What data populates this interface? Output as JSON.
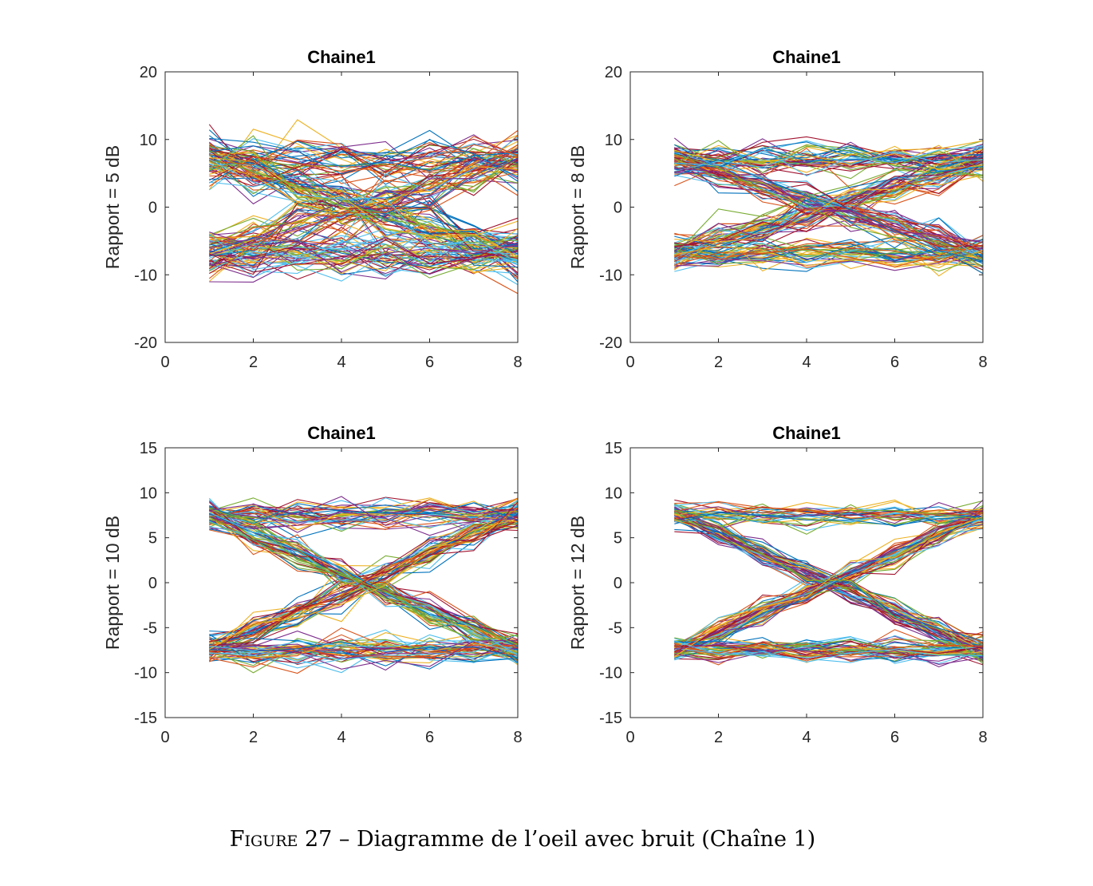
{
  "figure": {
    "caption_label": "Figure 27",
    "caption_text": " – Diagramme de l’oeil avec bruit (Chaîne 1)"
  },
  "chart_data": [
    {
      "type": "line",
      "title": "Chaine1",
      "ylabel": "Rapport = 5 dB",
      "xlabel": "",
      "xlim": [
        0,
        8
      ],
      "ylim": [
        -20,
        20
      ],
      "xticks": [
        0,
        2,
        4,
        6,
        8
      ],
      "yticks": [
        -20,
        -10,
        0,
        10,
        20
      ],
      "x": [
        1,
        2,
        3,
        4,
        5,
        6,
        7,
        8
      ],
      "symbol_level": 7,
      "noise_std": 3.2,
      "trace_count": 160,
      "series_colors": [
        "#0072BD",
        "#D95319",
        "#EDB120",
        "#7E2F8E",
        "#77AC30",
        "#4DBEEE",
        "#A2142F"
      ]
    },
    {
      "type": "line",
      "title": "Chaine1",
      "ylabel": "Rapport = 8 dB",
      "xlabel": "",
      "xlim": [
        0,
        8
      ],
      "ylim": [
        -20,
        20
      ],
      "xticks": [
        0,
        2,
        4,
        6,
        8
      ],
      "yticks": [
        -20,
        -10,
        0,
        10,
        20
      ],
      "x": [
        1,
        2,
        3,
        4,
        5,
        6,
        7,
        8
      ],
      "symbol_level": 7,
      "noise_std": 2.2,
      "trace_count": 160,
      "series_colors": [
        "#0072BD",
        "#D95319",
        "#EDB120",
        "#7E2F8E",
        "#77AC30",
        "#4DBEEE",
        "#A2142F"
      ]
    },
    {
      "type": "line",
      "title": "Chaine1",
      "ylabel": "Rapport = 10 dB",
      "xlabel": "",
      "xlim": [
        0,
        8
      ],
      "ylim": [
        -15,
        15
      ],
      "xticks": [
        0,
        2,
        4,
        6,
        8
      ],
      "yticks": [
        -15,
        -10,
        -5,
        0,
        5,
        10,
        15
      ],
      "x": [
        1,
        2,
        3,
        4,
        5,
        6,
        7,
        8
      ],
      "symbol_level": 7.5,
      "noise_std": 1.5,
      "trace_count": 160,
      "series_colors": [
        "#0072BD",
        "#D95319",
        "#EDB120",
        "#7E2F8E",
        "#77AC30",
        "#4DBEEE",
        "#A2142F"
      ]
    },
    {
      "type": "line",
      "title": "Chaine1",
      "ylabel": "Rapport = 12 dB",
      "xlabel": "",
      "xlim": [
        0,
        8
      ],
      "ylim": [
        -15,
        15
      ],
      "xticks": [
        0,
        2,
        4,
        6,
        8
      ],
      "yticks": [
        -15,
        -10,
        -5,
        0,
        5,
        10,
        15
      ],
      "x": [
        1,
        2,
        3,
        4,
        5,
        6,
        7,
        8
      ],
      "symbol_level": 7.5,
      "noise_std": 1.2,
      "trace_count": 160,
      "series_colors": [
        "#0072BD",
        "#D95319",
        "#EDB120",
        "#7E2F8E",
        "#77AC30",
        "#4DBEEE",
        "#A2142F"
      ]
    }
  ]
}
